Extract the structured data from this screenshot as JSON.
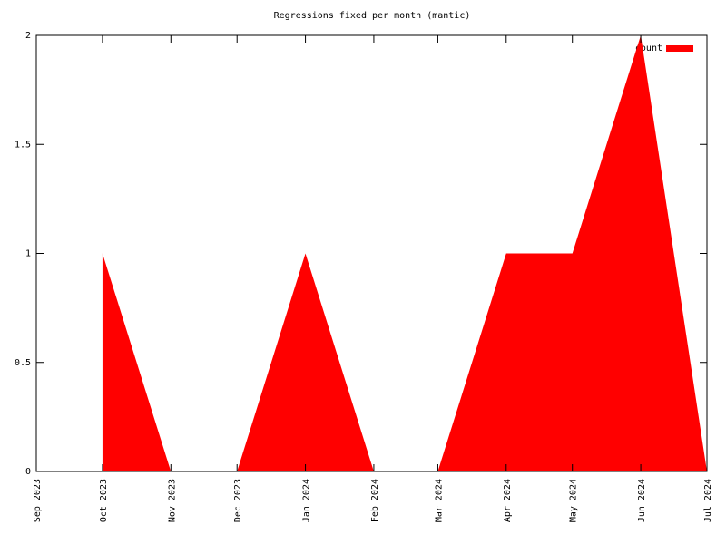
{
  "chart_data": {
    "type": "area",
    "title": "Regressions fixed per month (mantic)",
    "x": [
      "2023-10",
      "2023-11",
      "2023-12",
      "2024-01",
      "2024-02",
      "2024-03",
      "2024-04",
      "2024-05",
      "2024-06",
      "2024-07"
    ],
    "series": [
      {
        "name": "count",
        "color": "#ff0000",
        "values": [
          1,
          0,
          0,
          1,
          0,
          0,
          1,
          1,
          2,
          0
        ]
      }
    ],
    "xlim": [
      "2023-09",
      "2024-07"
    ],
    "xticks": [
      {
        "value": "2023-09",
        "label": "Sep 2023"
      },
      {
        "value": "2023-10",
        "label": "Oct 2023"
      },
      {
        "value": "2023-11",
        "label": "Nov 2023"
      },
      {
        "value": "2023-12",
        "label": "Dec 2023"
      },
      {
        "value": "2024-01",
        "label": "Jan 2024"
      },
      {
        "value": "2024-02",
        "label": "Feb 2024"
      },
      {
        "value": "2024-03",
        "label": "Mar 2024"
      },
      {
        "value": "2024-04",
        "label": "Apr 2024"
      },
      {
        "value": "2024-05",
        "label": "May 2024"
      },
      {
        "value": "2024-06",
        "label": "Jun 2024"
      },
      {
        "value": "2024-07",
        "label": "Jul 2024"
      }
    ],
    "ylim": [
      0,
      2
    ],
    "yticks": [
      0,
      0.5,
      1,
      1.5,
      2
    ],
    "legend": "top-right"
  }
}
